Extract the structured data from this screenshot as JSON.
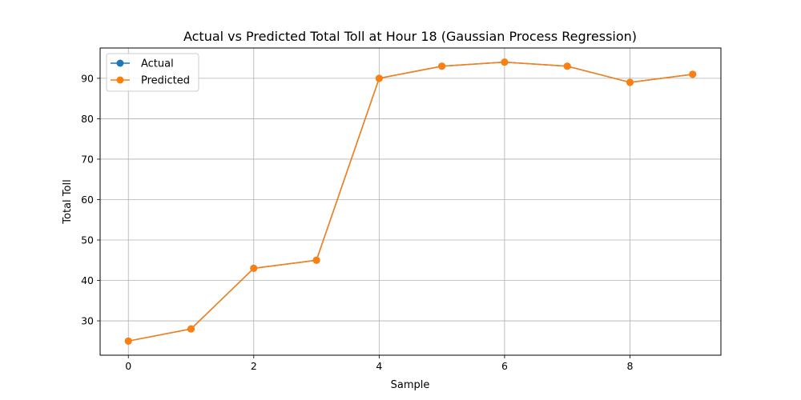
{
  "chart_data": {
    "type": "line",
    "title": "Actual vs Predicted Total Toll at Hour 18 (Gaussian Process Regression)",
    "xlabel": "Sample",
    "ylabel": "Total Toll",
    "x": [
      0,
      1,
      2,
      3,
      4,
      5,
      6,
      7,
      8,
      9
    ],
    "xlim": [
      -0.45,
      9.45
    ],
    "ylim": [
      21.5,
      97.5
    ],
    "xticks": [
      0,
      2,
      4,
      6,
      8
    ],
    "yticks": [
      30,
      40,
      50,
      60,
      70,
      80,
      90
    ],
    "grid": true,
    "legend_position": "top-left",
    "series": [
      {
        "name": "Actual",
        "color": "#1f77b4",
        "marker": "circle",
        "values": [
          25,
          28,
          43,
          45,
          90,
          93,
          94,
          93,
          89,
          91
        ]
      },
      {
        "name": "Predicted",
        "color": "#ff7f0e",
        "marker": "circle",
        "values": [
          25,
          28,
          43,
          45,
          90,
          93,
          94,
          93,
          89,
          91
        ]
      }
    ]
  }
}
